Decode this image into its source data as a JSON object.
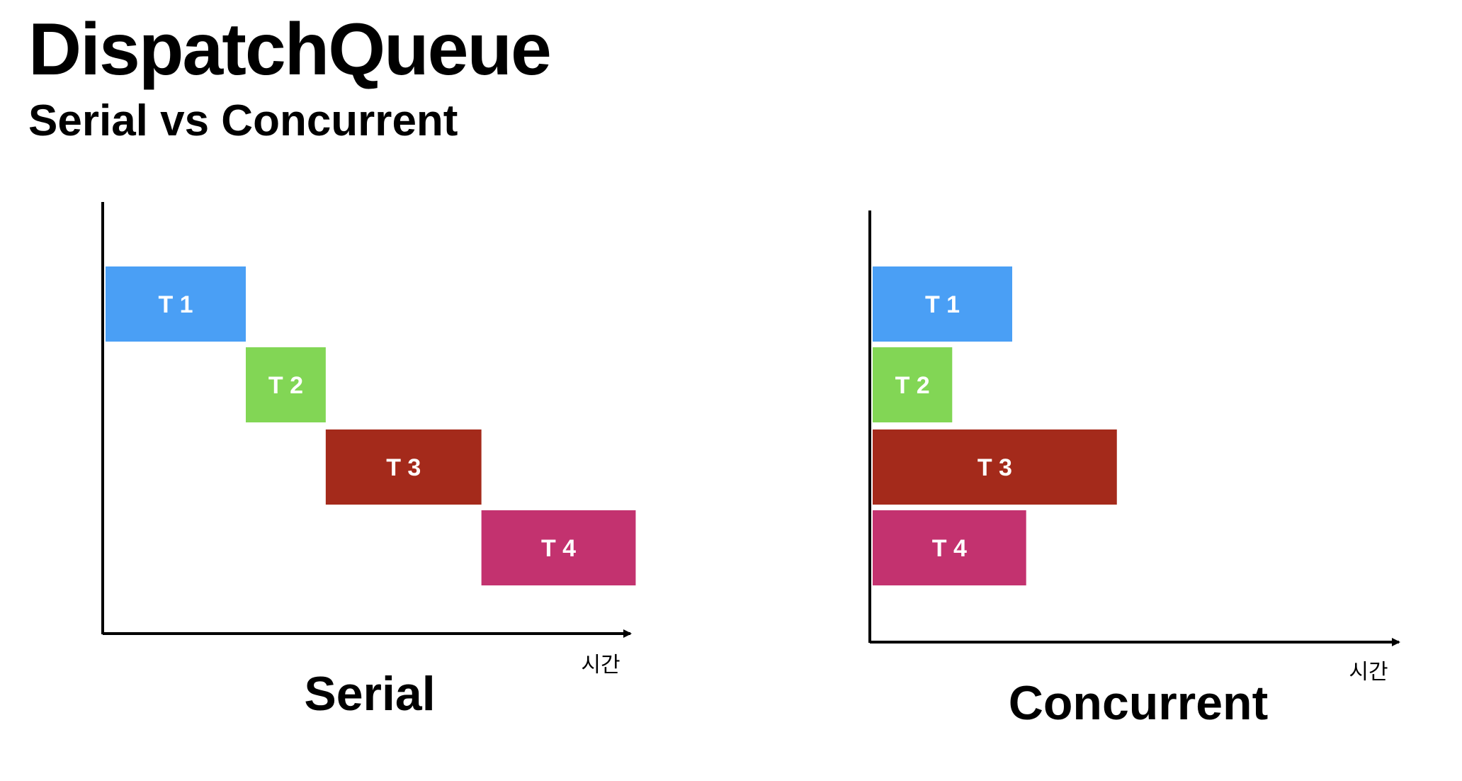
{
  "title": "DispatchQueue",
  "subtitle": "Serial vs Concurrent",
  "colors": {
    "background": "#ffffff",
    "axis": "#000000",
    "t1": "#4a9ff5",
    "t2": "#82d655",
    "t3": "#a42a1b",
    "t4": "#c3326f",
    "label_text": "#ffffff"
  },
  "panels": [
    {
      "id": "serial",
      "caption": "Serial",
      "axis_unit": "시간",
      "tasks": [
        {
          "label": "T 1",
          "color_key": "t1",
          "start": 0,
          "end": 1
        },
        {
          "label": "T 2",
          "color_key": "t2",
          "start": 1,
          "end": 1.57
        },
        {
          "label": "T 3",
          "color_key": "t3",
          "start": 1.57,
          "end": 2.68
        },
        {
          "label": "T 4",
          "color_key": "t4",
          "start": 2.68,
          "end": 3.78
        }
      ]
    },
    {
      "id": "concurrent",
      "caption": "Concurrent",
      "axis_unit": "시간",
      "tasks": [
        {
          "label": "T 1",
          "color_key": "t1",
          "start": 0,
          "end": 1
        },
        {
          "label": "T 2",
          "color_key": "t2",
          "start": 0,
          "end": 0.57
        },
        {
          "label": "T 3",
          "color_key": "t3",
          "start": 0,
          "end": 1.75
        },
        {
          "label": "T 4",
          "color_key": "t4",
          "start": 0,
          "end": 1.1
        }
      ]
    }
  ]
}
